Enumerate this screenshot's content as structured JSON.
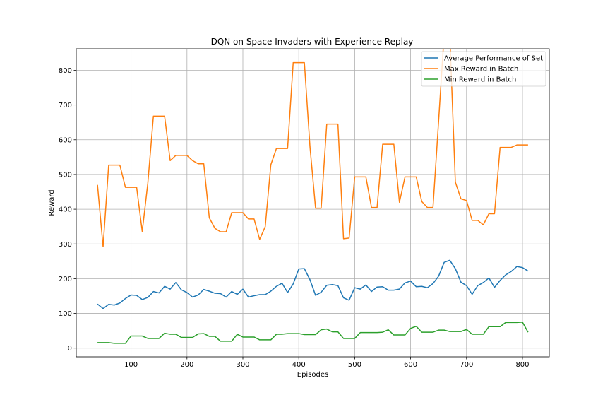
{
  "chart_data": {
    "type": "line",
    "title": "DQN on Space Invaders with Experience Replay",
    "xlabel": "Episodes",
    "ylabel": "Reward",
    "xlim": [
      2,
      848
    ],
    "ylim": [
      -25,
      862
    ],
    "xticks": [
      100,
      200,
      300,
      400,
      500,
      600,
      700,
      800
    ],
    "yticks": [
      0,
      100,
      200,
      300,
      400,
      500,
      600,
      700,
      800
    ],
    "grid": true,
    "legend_position": "top-right",
    "x": [
      40,
      50,
      60,
      70,
      80,
      90,
      100,
      110,
      120,
      130,
      140,
      150,
      160,
      170,
      180,
      190,
      200,
      210,
      220,
      230,
      240,
      250,
      260,
      270,
      280,
      290,
      300,
      310,
      320,
      330,
      340,
      350,
      360,
      370,
      380,
      390,
      400,
      410,
      420,
      430,
      440,
      450,
      460,
      470,
      480,
      490,
      500,
      510,
      520,
      530,
      540,
      550,
      560,
      570,
      580,
      590,
      600,
      610,
      620,
      630,
      640,
      650,
      660,
      670,
      680,
      690,
      700,
      710,
      720,
      730,
      740,
      750,
      760,
      770,
      780,
      790,
      800,
      810
    ],
    "series": [
      {
        "name": "Average Performance of Set",
        "color": "#1f77b4",
        "values": [
          127,
          114,
          126,
          124,
          130,
          143,
          153,
          152,
          140,
          146,
          163,
          159,
          178,
          170,
          189,
          168,
          160,
          147,
          153,
          169,
          164,
          158,
          157,
          147,
          163,
          155,
          170,
          147,
          151,
          154,
          154,
          164,
          178,
          187,
          160,
          185,
          228,
          229,
          197,
          152,
          161,
          181,
          183,
          180,
          145,
          138,
          174,
          170,
          182,
          163,
          176,
          177,
          167,
          167,
          170,
          188,
          193,
          177,
          178,
          174,
          186,
          207,
          247,
          253,
          229,
          190,
          180,
          155,
          180,
          189,
          202,
          175,
          195,
          211,
          221,
          235,
          232,
          222
        ]
      },
      {
        "name": "Max Reward in Batch",
        "color": "#ff7f0e",
        "values": [
          470,
          292,
          527,
          527,
          527,
          463,
          463,
          463,
          336,
          475,
          668,
          668,
          668,
          540,
          555,
          555,
          555,
          540,
          531,
          531,
          375,
          345,
          335,
          335,
          390,
          390,
          390,
          372,
          372,
          313,
          350,
          528,
          575,
          575,
          575,
          822,
          822,
          822,
          580,
          403,
          403,
          645,
          645,
          645,
          315,
          317,
          493,
          493,
          493,
          405,
          405,
          587,
          587,
          587,
          420,
          493,
          493,
          493,
          422,
          405,
          405,
          652,
          905,
          905,
          478,
          430,
          425,
          368,
          368,
          355,
          387,
          387,
          578,
          578,
          578,
          585,
          585,
          585
        ]
      },
      {
        "name": "Min Reward in Batch",
        "color": "#2ca02c",
        "values": [
          16,
          16,
          16,
          14,
          14,
          14,
          35,
          35,
          35,
          28,
          28,
          28,
          43,
          40,
          40,
          31,
          31,
          31,
          41,
          42,
          34,
          34,
          20,
          20,
          20,
          40,
          32,
          32,
          32,
          24,
          24,
          24,
          40,
          40,
          42,
          42,
          42,
          39,
          39,
          39,
          53,
          55,
          47,
          47,
          28,
          28,
          28,
          45,
          45,
          45,
          45,
          46,
          53,
          38,
          38,
          38,
          57,
          63,
          46,
          46,
          46,
          52,
          52,
          48,
          48,
          48,
          54,
          40,
          40,
          40,
          62,
          62,
          62,
          74,
          74,
          74,
          75,
          46
        ]
      }
    ]
  }
}
